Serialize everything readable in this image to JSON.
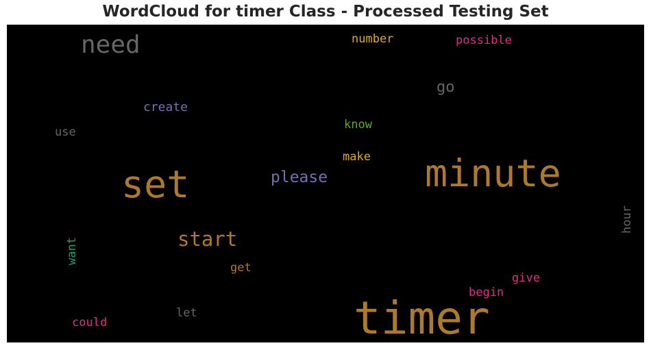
{
  "title": "WordCloud for timer Class - Processed Testing Set",
  "colors": {
    "background": "#000000",
    "title_text": "#262626"
  },
  "words": [
    {
      "id": "timer",
      "text": "timer",
      "color": "#ad7a29"
    },
    {
      "id": "minute",
      "text": "minute",
      "color": "#ad7a29"
    },
    {
      "id": "set",
      "text": "set",
      "color": "#ad7a29"
    },
    {
      "id": "need",
      "text": "need",
      "color": "#666666"
    },
    {
      "id": "start",
      "text": "start",
      "color": "#ad7a29"
    },
    {
      "id": "please",
      "text": "please",
      "color": "#7570b3"
    },
    {
      "id": "go",
      "text": "go",
      "color": "#666666"
    },
    {
      "id": "create",
      "text": "create",
      "color": "#7570b3"
    },
    {
      "id": "know",
      "text": "know",
      "color": "#66a61e"
    },
    {
      "id": "make",
      "text": "make",
      "color": "#e6ab02"
    },
    {
      "id": "number",
      "text": "number",
      "color": "#e6ab02"
    },
    {
      "id": "possible",
      "text": "possible",
      "color": "#e7298a"
    },
    {
      "id": "use",
      "text": "use",
      "color": "#666666"
    },
    {
      "id": "hour",
      "text": "hour",
      "color": "#666666"
    },
    {
      "id": "want",
      "text": "want",
      "color": "#1b9e77"
    },
    {
      "id": "get",
      "text": "get",
      "color": "#ad7a29"
    },
    {
      "id": "give",
      "text": "give",
      "color": "#e7298a"
    },
    {
      "id": "begin",
      "text": "begin",
      "color": "#e7298a"
    },
    {
      "id": "let",
      "text": "let",
      "color": "#666666"
    },
    {
      "id": "could",
      "text": "could",
      "color": "#e7298a"
    }
  ]
}
